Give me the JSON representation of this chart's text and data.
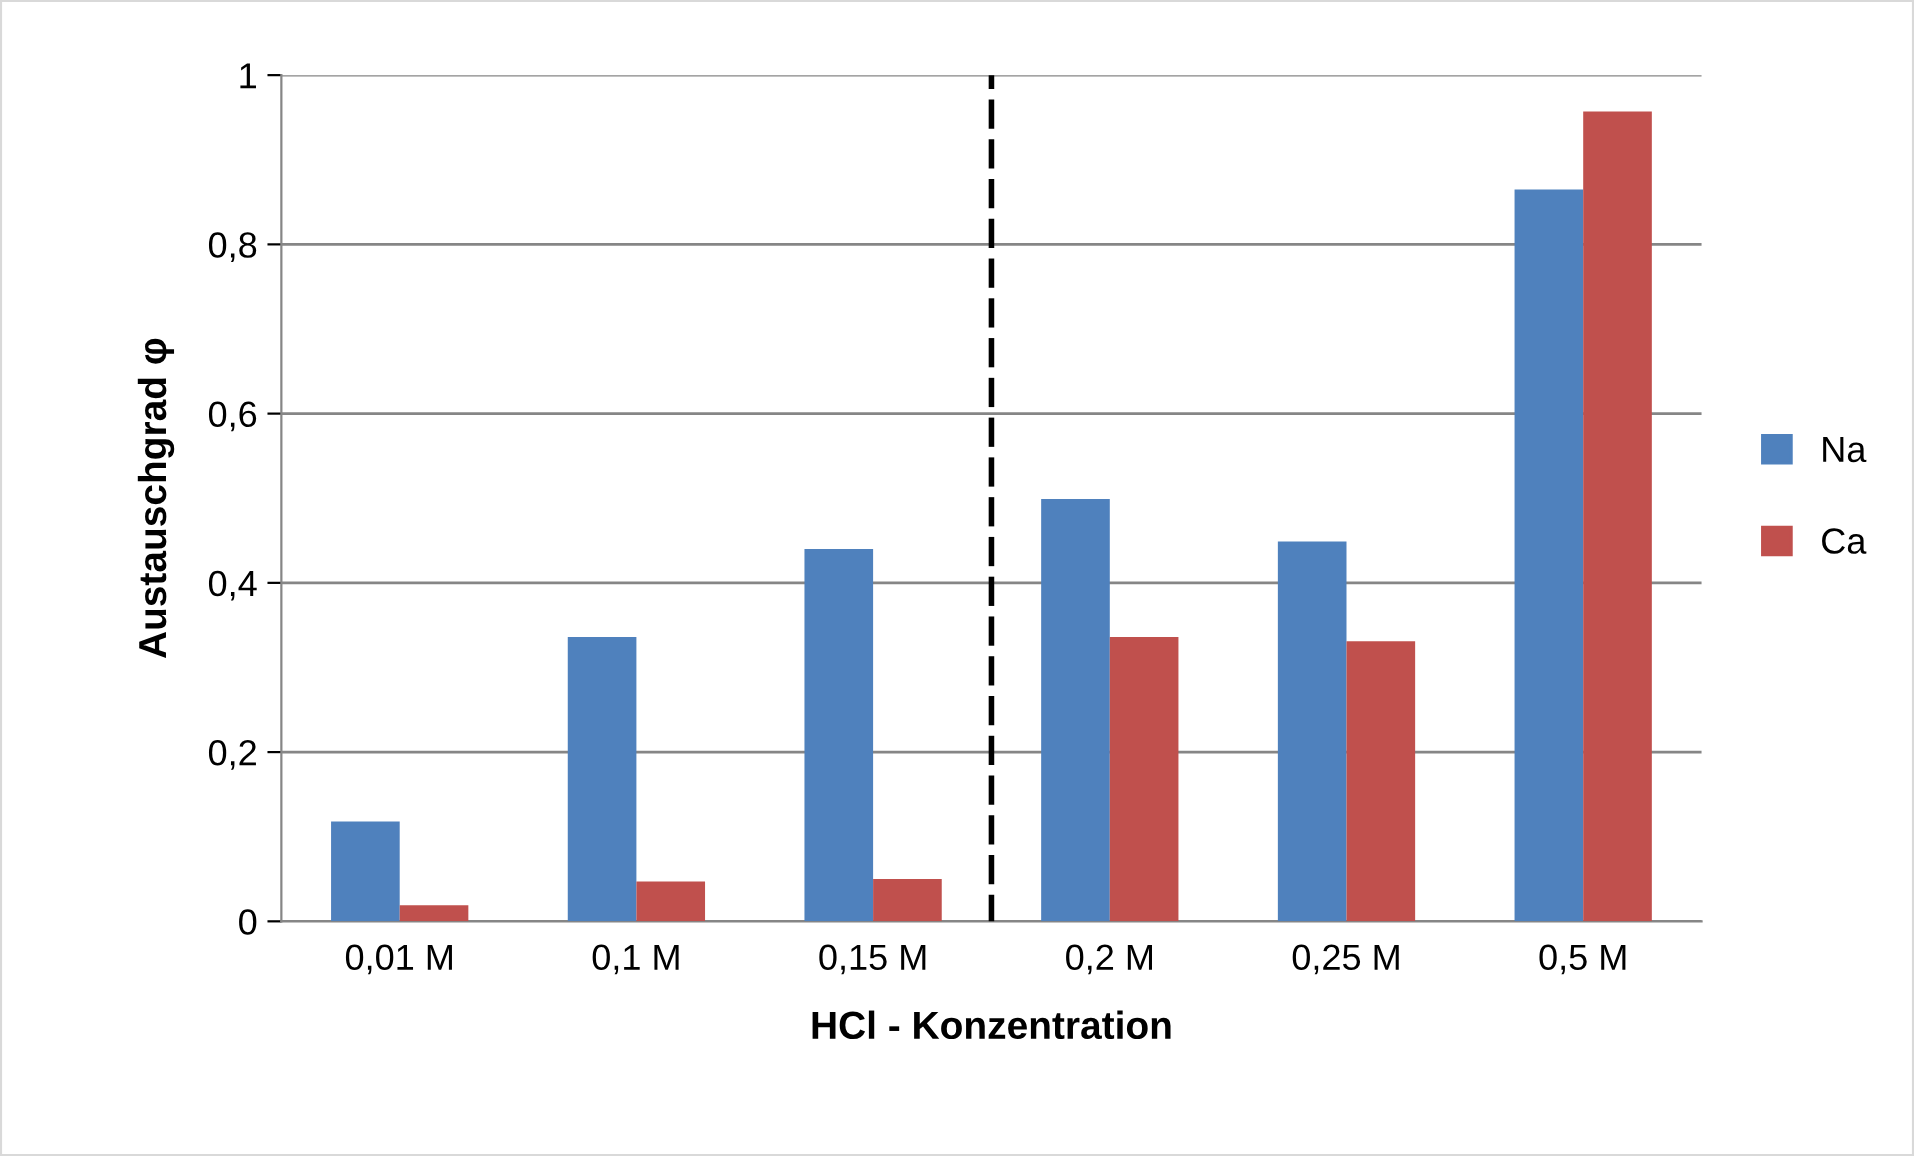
{
  "chart_data": {
    "type": "bar",
    "xlabel": "HCl - Konzentration",
    "ylabel": "Austauschgrad φ",
    "categories": [
      "0,01 M",
      "0,1 M",
      "0,15 M",
      "0,2 M",
      "0,25 M",
      "0,5 M"
    ],
    "series": [
      {
        "name": "Na",
        "color": "#4f81bd",
        "values": [
          0.118,
          0.336,
          0.44,
          0.499,
          0.449,
          0.865
        ]
      },
      {
        "name": "Ca",
        "color": "#c0504d",
        "values": [
          0.019,
          0.047,
          0.05,
          0.336,
          0.331,
          0.957
        ]
      }
    ],
    "ylim": [
      0,
      1
    ],
    "yticks": [
      {
        "value": 0,
        "label": "0"
      },
      {
        "value": 0.2,
        "label": "0,2"
      },
      {
        "value": 0.4,
        "label": "0,4"
      },
      {
        "value": 0.6,
        "label": "0,6"
      },
      {
        "value": 0.8,
        "label": "0,8"
      },
      {
        "value": 1,
        "label": "1"
      }
    ],
    "grid": "y",
    "legend": "right"
  }
}
